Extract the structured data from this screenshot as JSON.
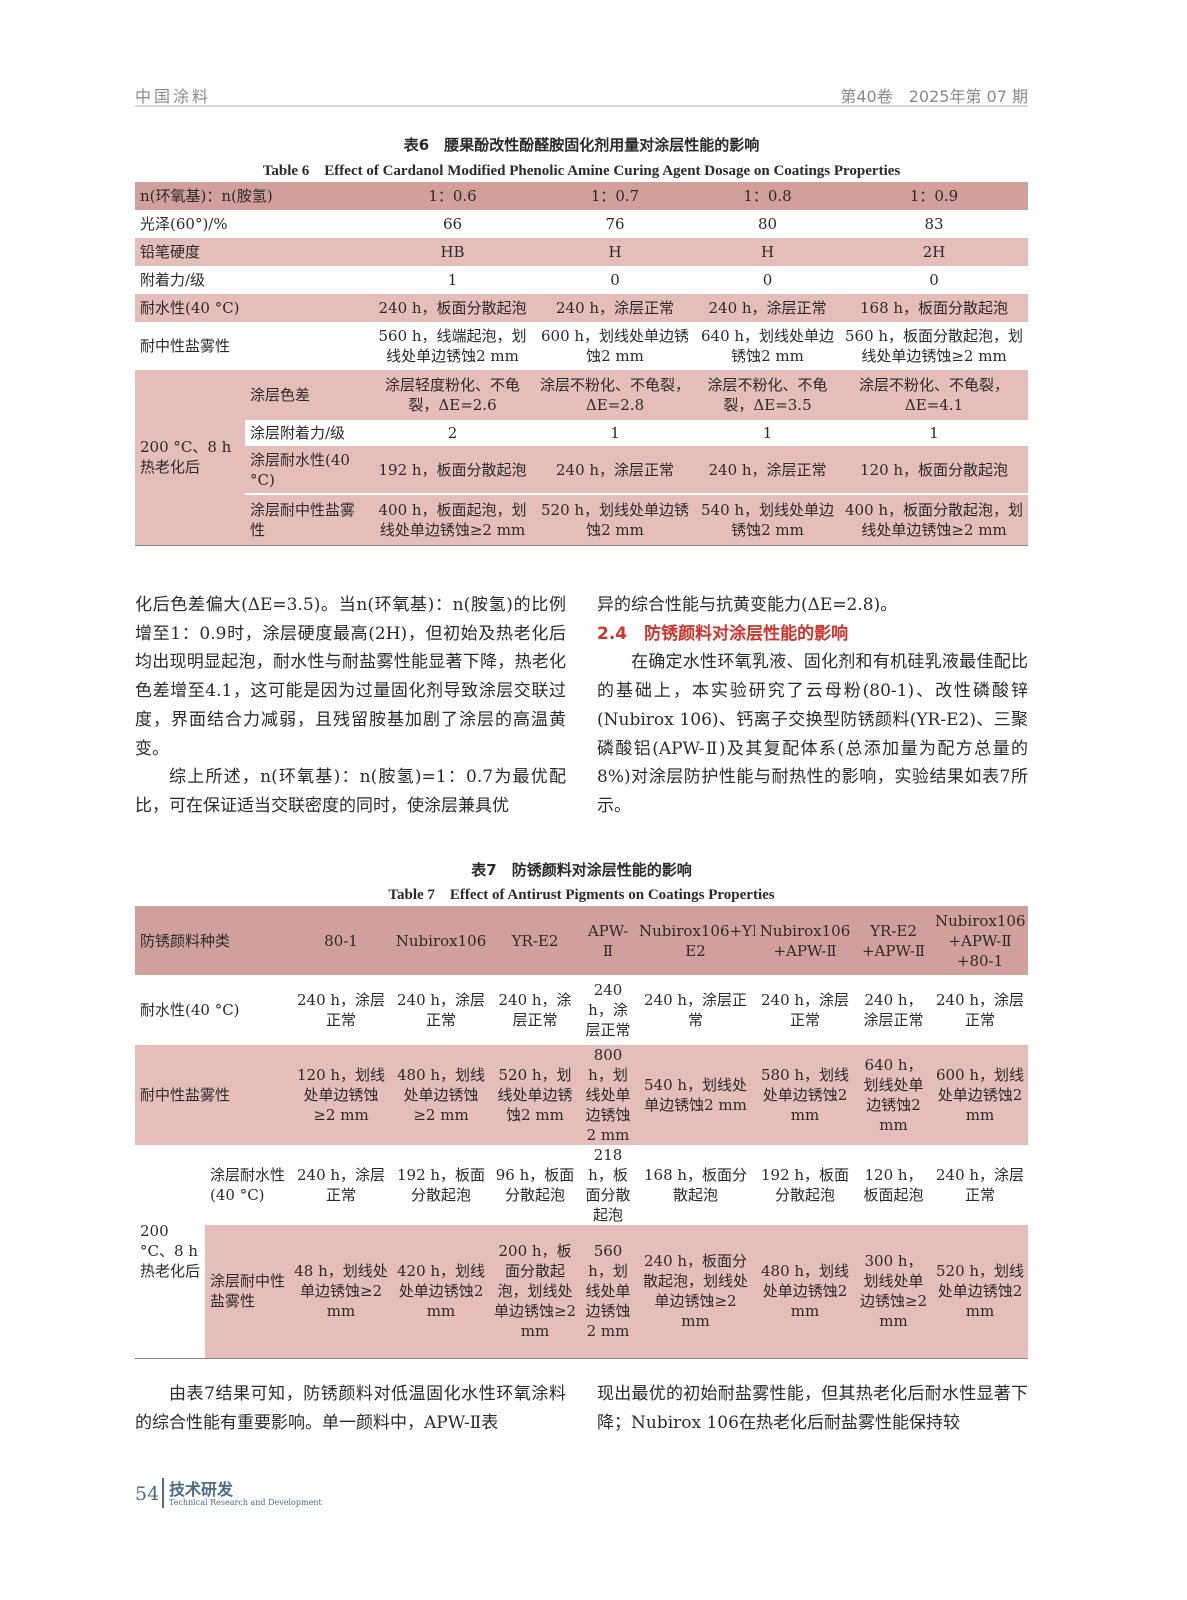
{
  "header": {
    "journal": "中国涂料",
    "issue": "第40卷　2025年第 07 期"
  },
  "table6": {
    "caption_zh": "表6　腰果酚改性酚醛胺固化剂用量对涂层性能的影响",
    "caption_en": "Table 6　Effect of Cardanol Modified Phenolic Amine Curing Agent Dosage on Coatings Properties",
    "widths": [
      110,
      125,
      165,
      160,
      145,
      188
    ],
    "rows": [
      {
        "style": "dark",
        "cells": [
          {
            "t": "n(环氧基)：n(胺氢)",
            "cs": 2,
            "l": 1
          },
          {
            "t": "1：0.6"
          },
          {
            "t": "1：0.7"
          },
          {
            "t": "1：0.8"
          },
          {
            "t": "1：0.9"
          }
        ]
      },
      {
        "style": "white",
        "cells": [
          {
            "t": "光泽(60°)/%",
            "cs": 2,
            "l": 1
          },
          {
            "t": "66"
          },
          {
            "t": "76"
          },
          {
            "t": "80"
          },
          {
            "t": "83"
          }
        ]
      },
      {
        "style": "pink",
        "cells": [
          {
            "t": "铅笔硬度",
            "cs": 2,
            "l": 1
          },
          {
            "t": "HB"
          },
          {
            "t": "H"
          },
          {
            "t": "H"
          },
          {
            "t": "2H"
          }
        ]
      },
      {
        "style": "white",
        "cells": [
          {
            "t": "附着力/级",
            "cs": 2,
            "l": 1
          },
          {
            "t": "1"
          },
          {
            "t": "0"
          },
          {
            "t": "0"
          },
          {
            "t": "0"
          }
        ]
      },
      {
        "style": "pink",
        "cells": [
          {
            "t": "耐水性(40 °C)",
            "cs": 2,
            "l": 1
          },
          {
            "t": "240 h，板面分散起泡"
          },
          {
            "t": "240 h，涂层正常"
          },
          {
            "t": "240 h，涂层正常"
          },
          {
            "t": "168 h，板面分散起泡"
          }
        ]
      },
      {
        "style": "white",
        "h": 48,
        "cells": [
          {
            "t": "耐中性盐雾性",
            "cs": 2,
            "l": 1
          },
          {
            "t": "560 h，线端起泡，划线处单边锈蚀2 mm"
          },
          {
            "t": "600 h，划线处单边锈蚀2 mm"
          },
          {
            "t": "640 h，划线处单边锈蚀2 mm"
          },
          {
            "t": "560 h，板面分散起泡，划线处单边锈蚀≥2 mm"
          }
        ]
      },
      {
        "style": "pink",
        "h": 50,
        "cells": [
          {
            "t": "200 °C、8 h 热老化后",
            "rs": 4,
            "l": 1,
            "bg": "pinkcell"
          },
          {
            "t": "涂层色差",
            "l": 1
          },
          {
            "t": "涂层轻度粉化、不龟裂，ΔE=2.6"
          },
          {
            "t": "涂层不粉化、不龟裂，ΔE=2.8"
          },
          {
            "t": "涂层不粉化、不龟裂，ΔE=3.5"
          },
          {
            "t": "涂层不粉化、不龟裂，ΔE=4.1"
          }
        ]
      },
      {
        "style": "white",
        "h": 26,
        "cells": [
          {
            "t": "涂层附着力/级",
            "l": 1
          },
          {
            "t": "2"
          },
          {
            "t": "1"
          },
          {
            "t": "1"
          },
          {
            "t": "1"
          }
        ]
      },
      {
        "style": "pink",
        "h": 48,
        "cells": [
          {
            "t": "涂层耐水性(40 °C)",
            "l": 1
          },
          {
            "t": "192 h，板面分散起泡"
          },
          {
            "t": "240 h，涂层正常"
          },
          {
            "t": "240 h，涂层正常"
          },
          {
            "t": "120 h，板面分散起泡"
          }
        ]
      },
      {
        "style": "pink",
        "h": 51,
        "sep": 1,
        "cells": [
          {
            "t": "涂层耐中性盐雾性",
            "l": 1
          },
          {
            "t": "400 h，板面起泡，划线处单边锈蚀≥2 mm"
          },
          {
            "t": "520 h，划线处单边锈蚀2 mm"
          },
          {
            "t": "540 h，划线处单边锈蚀2 mm"
          },
          {
            "t": "400 h，板面分散起泡，划线处单边锈蚀≥2 mm"
          }
        ]
      }
    ]
  },
  "body1": {
    "left_p1": "化后色差偏大(ΔE=3.5)。当n(环氧基)：n(胺氢)的比例增至1：0.9时，涂层硬度最高(2H)，但初始及热老化后均出现明显起泡，耐水性与耐盐雾性能显著下降，热老化色差增至4.1，这可能是因为过量固化剂导致涂层交联过度，界面结合力减弱，且残留胺基加剧了涂层的高温黄变。",
    "left_p2": "综上所述，n(环氧基)：n(胺氢)=1：0.7为最优配比，可在保证适当交联密度的同时，使涂层兼具优",
    "right_p1": "异的综合性能与抗黄变能力(ΔE=2.8)。",
    "section": "2.4　防锈颜料对涂层性能的影响",
    "right_p2": "在确定水性环氧乳液、固化剂和有机硅乳液最佳配比的基础上，本实验研究了云母粉(80-1)、改性磷酸锌(Nubirox 106)、钙离子交换型防锈颜料(YR-E2)、三聚磷酸铝(APW-Ⅱ)及其复配体系(总添加量为配方总量的8%)对涂层防护性能与耐热性的影响，实验结果如表7所示。"
  },
  "table7": {
    "caption_zh": "表7　防锈颜料对涂层性能的影响",
    "caption_en": "Table 7　Effect of Antirust Pigments on Coatings Properties",
    "widths": [
      70,
      85,
      102,
      98,
      90,
      56,
      119,
      100,
      77,
      96
    ],
    "rows": [
      {
        "style": "dark",
        "h": 69,
        "cells": [
          {
            "t": "防锈颜料种类",
            "cs": 2,
            "l": 1
          },
          {
            "t": "80-1"
          },
          {
            "t": "Nubirox106"
          },
          {
            "t": "YR-E2"
          },
          {
            "t": "APW-Ⅱ"
          },
          {
            "t": "Nubirox106+YR-E2"
          },
          {
            "t": "Nubirox106 +APW-Ⅱ"
          },
          {
            "t": "YR-E2 +APW-Ⅱ"
          },
          {
            "t": "Nubirox106 +APW-Ⅱ +80-1"
          }
        ]
      },
      {
        "style": "white",
        "h": 70,
        "cells": [
          {
            "t": "耐水性(40 °C)",
            "cs": 2,
            "l": 1
          },
          {
            "t": "240 h，涂层正常"
          },
          {
            "t": "240 h，涂层正常"
          },
          {
            "t": "240 h，涂层正常"
          },
          {
            "t": "240 h，涂层正常"
          },
          {
            "t": "240 h，涂层正常"
          },
          {
            "t": "240 h，涂层正常"
          },
          {
            "t": "240 h，涂层正常"
          },
          {
            "t": "240 h，涂层正常"
          }
        ]
      },
      {
        "style": "pink",
        "h": 92,
        "cells": [
          {
            "t": "耐中性盐雾性",
            "cs": 2,
            "l": 1
          },
          {
            "t": "120 h，划线处单边锈蚀≥2 mm"
          },
          {
            "t": "480 h，划线处单边锈蚀≥2 mm"
          },
          {
            "t": "520 h，划线处单边锈蚀2 mm"
          },
          {
            "t": "800 h，划线处单边锈蚀2 mm"
          },
          {
            "t": "540 h，划线处单边锈蚀2 mm"
          },
          {
            "t": "580 h，划线处单边锈蚀2 mm"
          },
          {
            "t": "640 h，划线处单边锈蚀2 mm"
          },
          {
            "t": "600 h，划线处单边锈蚀2 mm"
          }
        ]
      },
      {
        "style": "white",
        "h": 68,
        "cells": [
          {
            "t": "200 °C、8 h热老化后",
            "rs": 2,
            "l": 1,
            "bg": "whitecell"
          },
          {
            "t": "涂层耐水性(40 °C)",
            "l": 1
          },
          {
            "t": "240 h，涂层正常"
          },
          {
            "t": "192 h，板面分散起泡"
          },
          {
            "t": "96 h，板面分散起泡"
          },
          {
            "t": "218 h，板面分散起泡"
          },
          {
            "t": "168 h，板面分散起泡"
          },
          {
            "t": "192 h，板面分散起泡"
          },
          {
            "t": "120 h，板面起泡"
          },
          {
            "t": "240 h，涂层正常"
          }
        ]
      },
      {
        "style": "pink",
        "h": 133,
        "cells": [
          {
            "t": "涂层耐中性盐雾性",
            "l": 1
          },
          {
            "t": "48 h，划线处单边锈蚀≥2 mm"
          },
          {
            "t": "420 h，划线处单边锈蚀2 mm"
          },
          {
            "t": "200 h，板面分散起泡，划线处单边锈蚀≥2 mm"
          },
          {
            "t": "560 h，划线处单边锈蚀2 mm"
          },
          {
            "t": "240 h，板面分散起泡，划线处单边锈蚀≥2 mm"
          },
          {
            "t": "480 h，划线处单边锈蚀2 mm"
          },
          {
            "t": "300 h，划线处单边锈蚀≥2 mm"
          },
          {
            "t": "520 h，划线处单边锈蚀2 mm"
          }
        ]
      }
    ]
  },
  "body2": {
    "left": "由表7结果可知，防锈颜料对低温固化水性环氧涂料的综合性能有重要影响。单一颜料中，APW-Ⅱ表",
    "right": "现出最优的初始耐盐雾性能，但其热老化后耐水性显著下降；Nubirox 106在热老化后耐盐雾性能保持较"
  },
  "footer": {
    "page": "54",
    "section_zh": "技术研发",
    "section_en": "Technical Research and Development"
  }
}
